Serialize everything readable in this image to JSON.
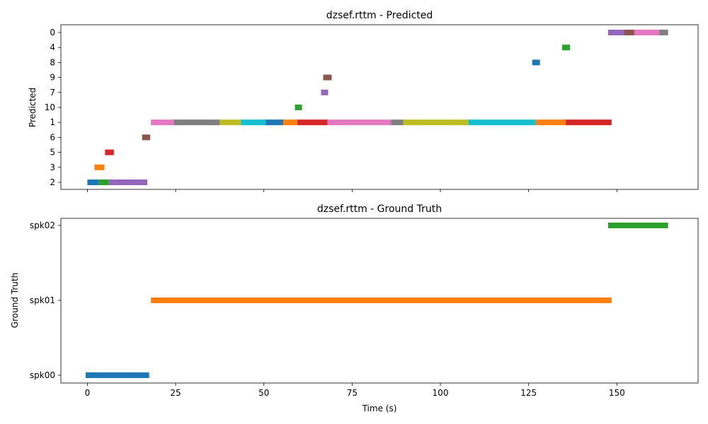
{
  "chart_data": [
    {
      "type": "timeline",
      "title": "dzsef.rttm - Predicted",
      "xlabel": "",
      "ylabel": "Predicted",
      "xlim": [
        -7.5,
        173
      ],
      "xticks": [
        0,
        25,
        50,
        75,
        100,
        125,
        150
      ],
      "show_x_tick_labels": false,
      "rows": [
        "2",
        "3",
        "5",
        "6",
        "1",
        "10",
        "7",
        "9",
        "8",
        "4",
        "0"
      ],
      "segments": [
        {
          "row": "2",
          "start": 0,
          "end": 3.2,
          "color": "#1f77b4"
        },
        {
          "row": "2",
          "start": 3.2,
          "end": 6,
          "color": "#2ca02c"
        },
        {
          "row": "2",
          "start": 6,
          "end": 17,
          "color": "#9467bd"
        },
        {
          "row": "3",
          "start": 2,
          "end": 4.8,
          "color": "#ff7f0e"
        },
        {
          "row": "5",
          "start": 5,
          "end": 7.5,
          "color": "#d62728"
        },
        {
          "row": "6",
          "start": 15.5,
          "end": 17.8,
          "color": "#8c564b"
        },
        {
          "row": "1",
          "start": 18,
          "end": 24.5,
          "color": "#e377c2"
        },
        {
          "row": "1",
          "start": 24.5,
          "end": 37.5,
          "color": "#7f7f7f"
        },
        {
          "row": "1",
          "start": 37.5,
          "end": 43.5,
          "color": "#bcbd22"
        },
        {
          "row": "1",
          "start": 43.5,
          "end": 50.5,
          "color": "#17becf"
        },
        {
          "row": "1",
          "start": 50.5,
          "end": 55.5,
          "color": "#1f77b4"
        },
        {
          "row": "1",
          "start": 55.5,
          "end": 59.5,
          "color": "#ff7f0e"
        },
        {
          "row": "1",
          "start": 59.5,
          "end": 68,
          "color": "#d62728"
        },
        {
          "row": "1",
          "start": 68,
          "end": 86,
          "color": "#e377c2"
        },
        {
          "row": "1",
          "start": 86,
          "end": 89.5,
          "color": "#7f7f7f"
        },
        {
          "row": "1",
          "start": 89.5,
          "end": 108,
          "color": "#bcbd22"
        },
        {
          "row": "1",
          "start": 108,
          "end": 127,
          "color": "#17becf"
        },
        {
          "row": "1",
          "start": 127,
          "end": 135.5,
          "color": "#ff7f0e"
        },
        {
          "row": "1",
          "start": 135.5,
          "end": 148.5,
          "color": "#d62728"
        },
        {
          "row": "10",
          "start": 58.8,
          "end": 60.8,
          "color": "#2ca02c"
        },
        {
          "row": "7",
          "start": 66.2,
          "end": 68.2,
          "color": "#9467bd"
        },
        {
          "row": "9",
          "start": 66.8,
          "end": 69.2,
          "color": "#8c564b"
        },
        {
          "row": "8",
          "start": 126,
          "end": 128.2,
          "color": "#1f77b4"
        },
        {
          "row": "4",
          "start": 134.5,
          "end": 136.7,
          "color": "#2ca02c"
        },
        {
          "row": "0",
          "start": 147.5,
          "end": 152,
          "color": "#9467bd"
        },
        {
          "row": "0",
          "start": 152,
          "end": 155,
          "color": "#8c564b"
        },
        {
          "row": "0",
          "start": 155,
          "end": 162,
          "color": "#e377c2"
        },
        {
          "row": "0",
          "start": 162,
          "end": 164.5,
          "color": "#7f7f7f"
        }
      ]
    },
    {
      "type": "timeline",
      "title": "dzsef.rttm - Ground Truth",
      "xlabel": "Time (s)",
      "ylabel": "Ground Truth",
      "xlim": [
        -7.5,
        173
      ],
      "xticks": [
        0,
        25,
        50,
        75,
        100,
        125,
        150
      ],
      "show_x_tick_labels": true,
      "rows": [
        "spk00",
        "spk01",
        "spk02"
      ],
      "segments": [
        {
          "row": "spk00",
          "start": -0.5,
          "end": 17.5,
          "color": "#1f77b4"
        },
        {
          "row": "spk01",
          "start": 18,
          "end": 148.5,
          "color": "#ff7f0e"
        },
        {
          "row": "spk02",
          "start": 147.5,
          "end": 164.5,
          "color": "#2ca02c"
        }
      ]
    }
  ]
}
